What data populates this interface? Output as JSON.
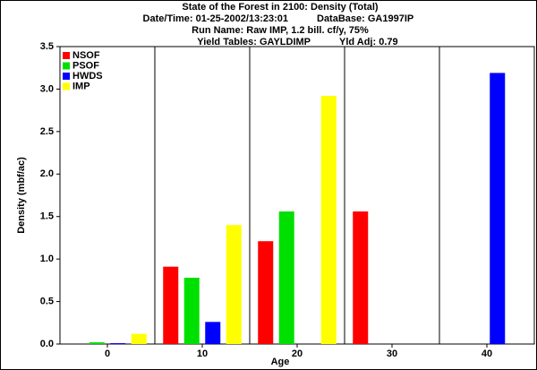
{
  "chart_data": {
    "type": "bar",
    "title": "State of the Forest in 2100: Density (Total)",
    "subtitle": [
      [
        "Date/Time: 01-25-2002/13:23:01",
        "DataBase: GA1997IP"
      ],
      [
        "Run Name: Raw IMP, 1.2 bill. cf/y, 75%"
      ],
      [
        "Yield Tables: GAYLDIMP",
        "Yld Adj: 0.79"
      ]
    ],
    "xlabel": "Age",
    "ylabel": "Density (mbf/ac)",
    "categories": [
      "0",
      "10",
      "20",
      "30",
      "40"
    ],
    "series": [
      {
        "name": "NSOF",
        "color": "#ff0000",
        "values": [
          0,
          0.91,
          1.21,
          1.56,
          0
        ]
      },
      {
        "name": "PSOF",
        "color": "#00e000",
        "values": [
          0.02,
          0.78,
          1.56,
          0,
          0
        ]
      },
      {
        "name": "HWDS",
        "color": "#0000ff",
        "values": [
          0.01,
          0.26,
          0,
          0,
          3.19
        ]
      },
      {
        "name": "IMP",
        "color": "#ffff00",
        "values": [
          0.12,
          1.4,
          2.92,
          0,
          0
        ]
      }
    ],
    "ylim": [
      0,
      3.5
    ],
    "yticks": [
      {
        "value": 0,
        "label": "0.0"
      },
      0.5,
      {
        "value": 1,
        "label": "1.0"
      },
      1.5,
      {
        "value": 2,
        "label": "2.0"
      },
      2.5,
      {
        "value": 3,
        "label": "3.0"
      },
      3.5
    ],
    "legend": "top-left"
  }
}
